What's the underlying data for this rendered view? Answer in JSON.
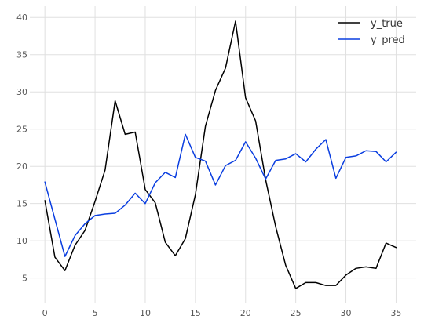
{
  "chart_data": {
    "type": "line",
    "title": "",
    "xlabel": "",
    "ylabel": "",
    "xlim": [
      -1.5,
      37
    ],
    "ylim": [
      1.7,
      41.5
    ],
    "x_ticks": [
      0,
      5,
      10,
      15,
      20,
      25,
      30,
      35
    ],
    "y_ticks": [
      5,
      10,
      15,
      20,
      25,
      30,
      35,
      40
    ],
    "grid": true,
    "legend_position": "top-right",
    "x": [
      0,
      1,
      2,
      3,
      4,
      5,
      6,
      7,
      8,
      9,
      10,
      11,
      12,
      13,
      14,
      15,
      16,
      17,
      18,
      19,
      20,
      21,
      22,
      23,
      24,
      25,
      26,
      27,
      28,
      29,
      30,
      31,
      32,
      33,
      34,
      35
    ],
    "series": [
      {
        "name": "y_true",
        "color": "#000000",
        "values": [
          15.4,
          7.8,
          6.0,
          9.4,
          11.4,
          15.3,
          19.5,
          28.8,
          24.3,
          24.6,
          16.9,
          15.1,
          9.8,
          8.0,
          10.3,
          16.2,
          25.4,
          30.2,
          33.2,
          39.5,
          29.2,
          26.1,
          18.2,
          11.9,
          6.7,
          3.6,
          4.4,
          4.4,
          4.0,
          4.0,
          5.4,
          6.3,
          6.5,
          6.3,
          9.7,
          9.1
        ]
      },
      {
        "name": "y_pred",
        "color": "#0a3ee0",
        "values": [
          17.9,
          12.9,
          7.9,
          10.7,
          12.3,
          13.4,
          13.6,
          13.7,
          14.8,
          16.4,
          15.0,
          17.8,
          19.2,
          18.5,
          24.3,
          21.2,
          20.7,
          17.5,
          20.1,
          20.8,
          23.3,
          21.1,
          18.3,
          20.8,
          21.0,
          21.7,
          20.6,
          22.3,
          23.6,
          18.4,
          21.2,
          21.4,
          22.1,
          22.0,
          20.6,
          21.9
        ]
      }
    ]
  }
}
